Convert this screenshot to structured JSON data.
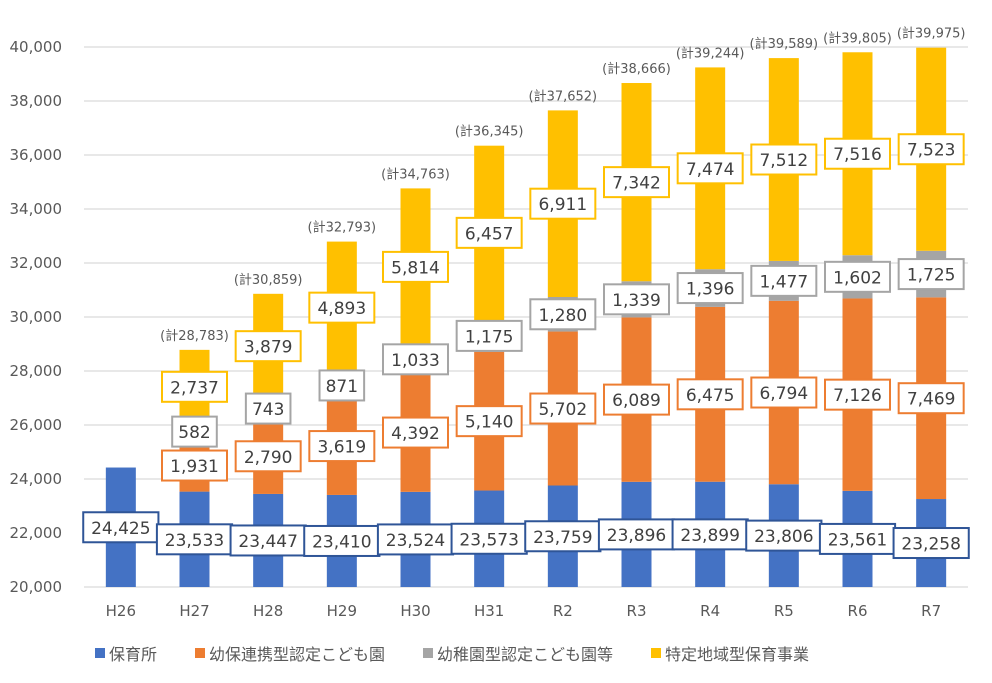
{
  "chart_data": {
    "type": "bar",
    "stacked": true,
    "title": "",
    "xlabel": "",
    "ylabel": "",
    "categories": [
      "H26",
      "H27",
      "H28",
      "H29",
      "H30",
      "H31",
      "R2",
      "R3",
      "R4",
      "R5",
      "R6",
      "R7"
    ],
    "ylim": [
      20000,
      40000
    ],
    "yticks": [
      20000,
      22000,
      24000,
      26000,
      28000,
      30000,
      32000,
      34000,
      36000,
      38000,
      40000
    ],
    "ytick_labels": [
      "20,000",
      "22,000",
      "24,000",
      "26,000",
      "28,000",
      "30,000",
      "32,000",
      "34,000",
      "36,000",
      "38,000",
      "40,000"
    ],
    "grid": true,
    "legend_position": "bottom",
    "series": [
      {
        "name": "保育所",
        "color": "#4472C4",
        "values": [
          24425,
          23533,
          23447,
          23410,
          23524,
          23573,
          23759,
          23896,
          23899,
          23806,
          23561,
          23258
        ],
        "labels": [
          "24,425",
          "23,533",
          "23,447",
          "23,410",
          "23,524",
          "23,573",
          "23,759",
          "23,896",
          "23,899",
          "23,806",
          "23,561",
          "23,258"
        ]
      },
      {
        "name": "幼保連携型認定こども園",
        "color": "#ED7D31",
        "values": [
          0,
          1931,
          2790,
          3619,
          4392,
          5140,
          5702,
          6089,
          6475,
          6794,
          7126,
          7469
        ],
        "labels": [
          "",
          "1,931",
          "2,790",
          "3,619",
          "4,392",
          "5,140",
          "5,702",
          "6,089",
          "6,475",
          "6,794",
          "7,126",
          "7,469"
        ]
      },
      {
        "name": "幼稚園型認定こども園等",
        "color": "#A5A5A5",
        "values": [
          0,
          582,
          743,
          871,
          1033,
          1175,
          1280,
          1339,
          1396,
          1477,
          1602,
          1725
        ],
        "labels": [
          "",
          "582",
          "743",
          "871",
          "1,033",
          "1,175",
          "1,280",
          "1,339",
          "1,396",
          "1,477",
          "1,602",
          "1,725"
        ]
      },
      {
        "name": "特定地域型保育事業",
        "color": "#FFC000",
        "values": [
          0,
          2737,
          3879,
          4893,
          5814,
          6457,
          6911,
          7342,
          7474,
          7512,
          7516,
          7523
        ],
        "labels": [
          "",
          "2,737",
          "3,879",
          "4,893",
          "5,814",
          "6,457",
          "6,911",
          "7,342",
          "7,474",
          "7,512",
          "7,516",
          "7,523"
        ]
      }
    ],
    "totals": [
      null,
      28783,
      30859,
      32793,
      34763,
      36345,
      37652,
      38666,
      39244,
      39589,
      39805,
      39975
    ],
    "total_labels": [
      "",
      "(計28,783)",
      "(計30,859)",
      "(計32,793)",
      "(計34,763)",
      "(計36,345)",
      "(計37,652)",
      "(計38,666)",
      "(計39,244)",
      "(計39,589)",
      "(計39,805)",
      "(計39,975)"
    ]
  }
}
